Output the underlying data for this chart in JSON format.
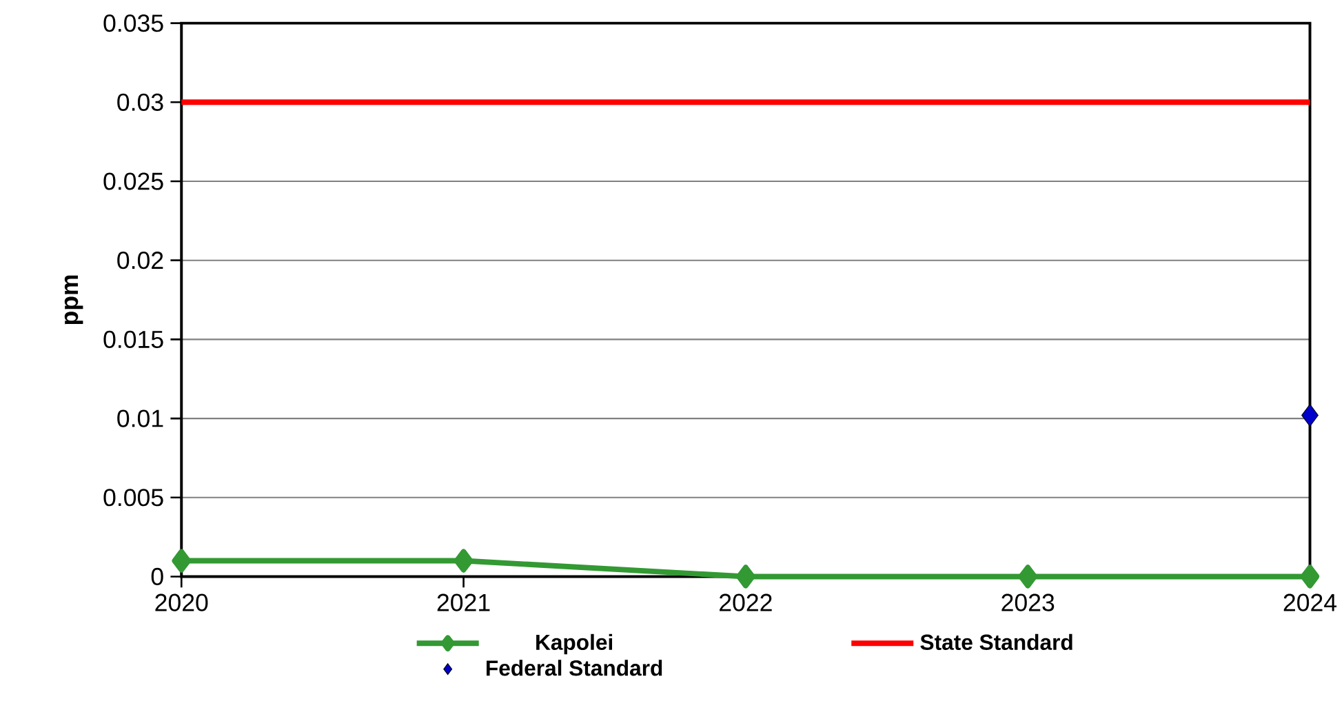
{
  "chart_data": {
    "type": "line",
    "ylabel": "ppm",
    "x": [
      2020,
      2021,
      2022,
      2023,
      2024
    ],
    "series": [
      {
        "name": "Kapolei",
        "color": "#339933",
        "marker": "diamond",
        "values": [
          0.001,
          0.001,
          0,
          0,
          0
        ]
      },
      {
        "name": "State Standard",
        "color": "#ff0000",
        "marker": "none",
        "values": [
          0.03,
          0.03,
          0.03,
          0.03,
          0.03
        ]
      },
      {
        "name": "Federal Standard",
        "type": "scatter",
        "color": "#0000cc",
        "marker": "diamond",
        "values": [
          null,
          null,
          null,
          null,
          0.0102
        ]
      }
    ],
    "xlim": [
      2020,
      2024
    ],
    "xticks": [
      2020,
      2021,
      2022,
      2023,
      2024
    ],
    "ylim": [
      0,
      0.035
    ],
    "yticks": [
      0,
      0.005,
      0.01,
      0.015,
      0.02,
      0.025,
      0.03,
      0.035
    ],
    "grid": "y",
    "legend": "bottom"
  }
}
